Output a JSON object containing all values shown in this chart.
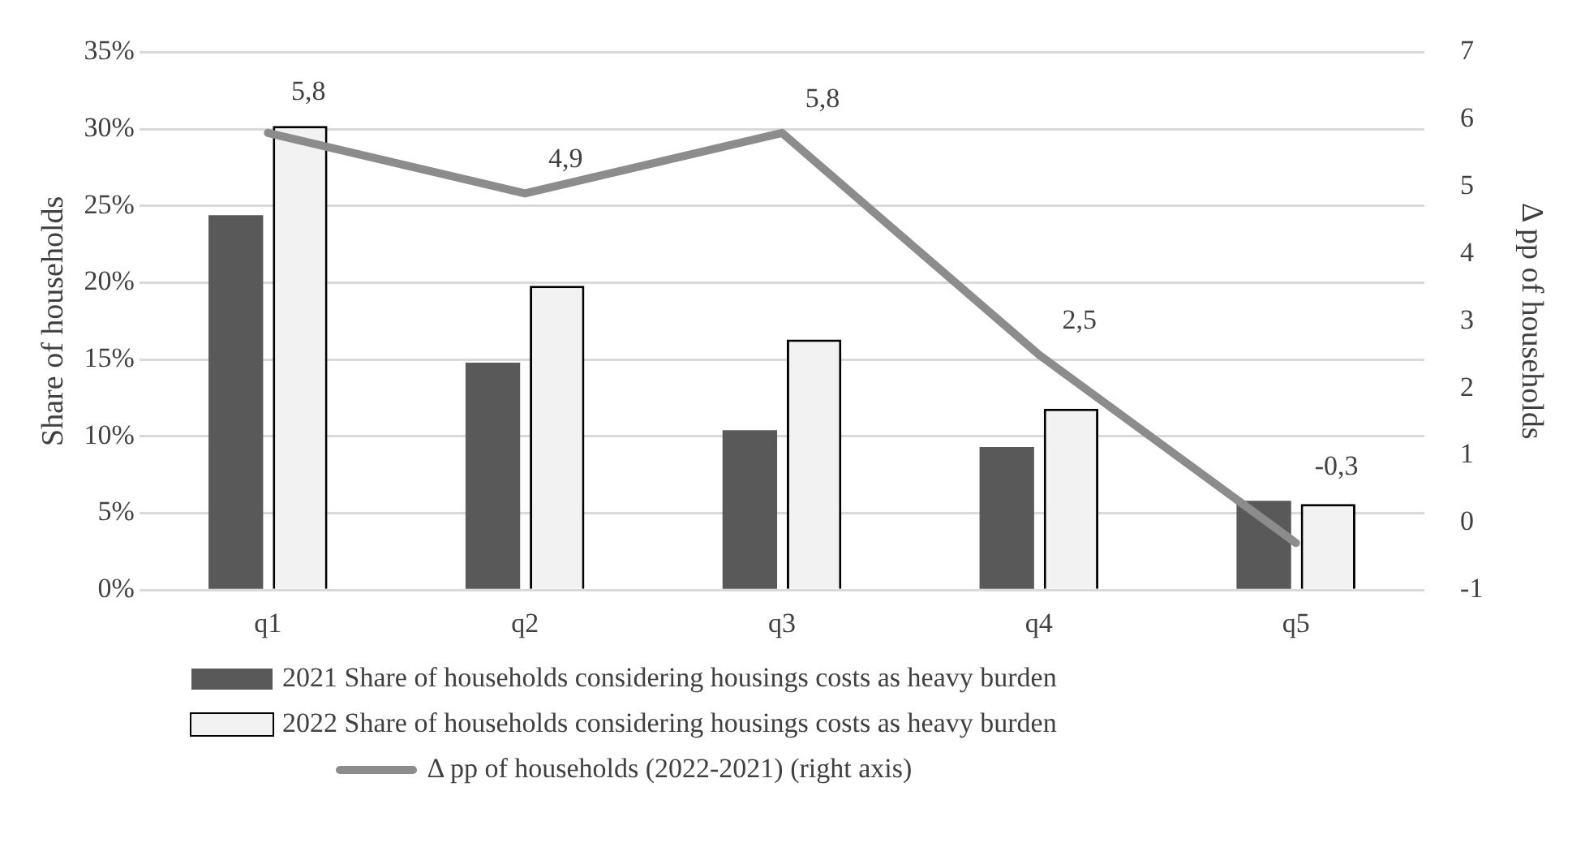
{
  "chart_data": {
    "type": "bar",
    "categories": [
      "q1",
      "q2",
      "q3",
      "q4",
      "q5"
    ],
    "ylabel": "Share of households",
    "y2label": "Δ pp of households",
    "series": [
      {
        "name": "2021 Share of households considering housings costs as heavy burden",
        "color": "#595959",
        "values": [
          24.4,
          14.8,
          10.4,
          9.3,
          5.8
        ]
      },
      {
        "name": "2022 Share of households considering housings costs as heavy burden",
        "color": "#f2f2f2",
        "values": [
          30.2,
          19.8,
          16.3,
          11.8,
          5.6
        ]
      },
      {
        "name": "Δ pp of households (2022-2021) (right axis)",
        "type": "line",
        "axis": "y2",
        "color": "#8c8c8c",
        "values": [
          5.8,
          4.9,
          5.8,
          2.5,
          -0.3
        ],
        "value_labels": [
          "5,8",
          "4,9",
          "5,8",
          "2,5",
          "-0,3"
        ]
      }
    ],
    "ylim": [
      0,
      35
    ],
    "yticks": [
      {
        "value": 0,
        "label": "0%"
      },
      {
        "value": 5,
        "label": "5%"
      },
      {
        "value": 10,
        "label": "10%"
      },
      {
        "value": 15,
        "label": "15%"
      },
      {
        "value": 20,
        "label": "20%"
      },
      {
        "value": 25,
        "label": "25%"
      },
      {
        "value": 30,
        "label": "30%"
      },
      {
        "value": 35,
        "label": "35%"
      }
    ],
    "y2lim": [
      -1,
      7
    ],
    "y2ticks": [
      -1,
      0,
      1,
      2,
      3,
      4,
      5,
      6,
      7
    ],
    "grid": "y",
    "legend": "bottom",
    "marker": "none"
  }
}
